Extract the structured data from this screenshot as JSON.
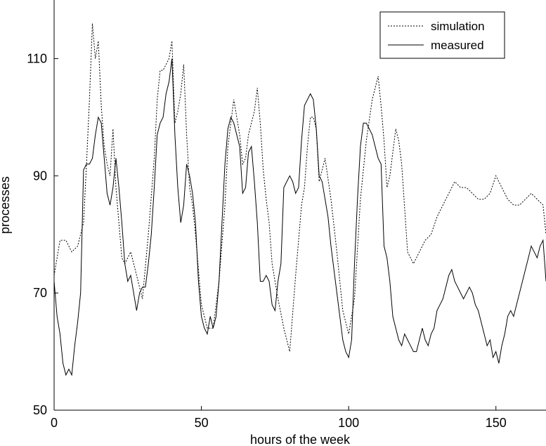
{
  "chart_data": {
    "type": "line",
    "title": "",
    "xlabel": "hours of the week",
    "ylabel": "processes",
    "xlim": [
      0,
      167
    ],
    "ylim": [
      50,
      120
    ],
    "xticks": [
      0,
      50,
      100,
      150
    ],
    "yticks": [
      50,
      70,
      90,
      110
    ],
    "grid": false,
    "legend_position": "top-right",
    "series": [
      {
        "name": "simulation",
        "style": "dotted",
        "color": "#000000",
        "x": [
          0,
          2,
          4,
          6,
          8,
          10,
          11,
          12,
          13,
          14,
          15,
          16,
          17,
          18,
          19,
          20,
          21,
          22,
          23,
          24,
          26,
          28,
          30,
          32,
          34,
          35,
          36,
          37,
          38,
          39,
          40,
          41,
          42,
          43,
          44,
          45,
          46,
          47,
          48,
          50,
          52,
          54,
          56,
          58,
          59,
          60,
          61,
          62,
          63,
          64,
          65,
          66,
          67,
          68,
          69,
          70,
          71,
          72,
          73,
          74,
          76,
          78,
          80,
          82,
          84,
          85,
          86,
          87,
          88,
          89,
          90,
          92,
          94,
          96,
          98,
          100,
          102,
          104,
          106,
          108,
          110,
          111,
          112,
          113,
          114,
          115,
          116,
          117,
          118,
          120,
          122,
          124,
          126,
          128,
          130,
          132,
          134,
          136,
          138,
          140,
          142,
          144,
          146,
          148,
          150,
          152,
          154,
          156,
          158,
          160,
          162,
          164,
          166,
          167
        ],
        "y": [
          73,
          79,
          79,
          77,
          78,
          82,
          92,
          103,
          116,
          110,
          113,
          102,
          95,
          92,
          90,
          98,
          88,
          82,
          76,
          75,
          77,
          73,
          69,
          80,
          93,
          103,
          108,
          108,
          109,
          110,
          113,
          99,
          101,
          104,
          109,
          97,
          88,
          85,
          80,
          68,
          64,
          64,
          72,
          85,
          95,
          99,
          103,
          100,
          97,
          92,
          93,
          97,
          99,
          101,
          105,
          99,
          91,
          86,
          82,
          75,
          69,
          64,
          60,
          73,
          85,
          88,
          95,
          100,
          100,
          98,
          89,
          93,
          86,
          77,
          67,
          63,
          69,
          86,
          96,
          103,
          107,
          102,
          96,
          88,
          90,
          94,
          98,
          96,
          92,
          77,
          75,
          77,
          79,
          80,
          83,
          85,
          87,
          89,
          88,
          88,
          87,
          86,
          86,
          87,
          90,
          88,
          86,
          85,
          85,
          86,
          87,
          86,
          85,
          80
        ]
      },
      {
        "name": "measured",
        "style": "solid",
        "color": "#000000",
        "x": [
          0,
          1,
          2,
          3,
          4,
          5,
          6,
          7,
          8,
          9,
          10,
          11,
          12,
          13,
          14,
          15,
          16,
          17,
          18,
          19,
          20,
          21,
          22,
          23,
          24,
          25,
          26,
          27,
          28,
          29,
          30,
          31,
          32,
          33,
          34,
          35,
          36,
          37,
          38,
          39,
          40,
          41,
          42,
          43,
          44,
          45,
          46,
          47,
          48,
          49,
          50,
          51,
          52,
          53,
          54,
          55,
          56,
          57,
          58,
          59,
          60,
          61,
          62,
          63,
          64,
          65,
          66,
          67,
          68,
          69,
          70,
          71,
          72,
          73,
          74,
          75,
          76,
          77,
          78,
          79,
          80,
          81,
          82,
          83,
          84,
          85,
          86,
          87,
          88,
          89,
          90,
          91,
          92,
          93,
          94,
          95,
          96,
          97,
          98,
          99,
          100,
          101,
          102,
          103,
          104,
          105,
          106,
          107,
          108,
          109,
          110,
          111,
          112,
          113,
          114,
          115,
          116,
          117,
          118,
          119,
          120,
          121,
          122,
          123,
          124,
          125,
          126,
          127,
          128,
          129,
          130,
          131,
          132,
          133,
          134,
          135,
          136,
          137,
          138,
          139,
          140,
          141,
          142,
          143,
          144,
          145,
          146,
          147,
          148,
          149,
          150,
          151,
          152,
          153,
          154,
          155,
          156,
          157,
          158,
          159,
          160,
          161,
          162,
          163,
          164,
          165,
          166,
          167
        ],
        "y": [
          72,
          66,
          63,
          58,
          56,
          57,
          56,
          61,
          65,
          70,
          91,
          92,
          92,
          93,
          97,
          100,
          99,
          93,
          87,
          85,
          88,
          93,
          88,
          82,
          75,
          72,
          73,
          70,
          67,
          70,
          71,
          71,
          75,
          80,
          88,
          97,
          99,
          100,
          104,
          106,
          110,
          97,
          88,
          82,
          85,
          92,
          90,
          87,
          82,
          72,
          66,
          64,
          63,
          66,
          64,
          66,
          72,
          82,
          92,
          98,
          100,
          99,
          97,
          95,
          87,
          88,
          94,
          95,
          89,
          82,
          72,
          72,
          73,
          72,
          68,
          67,
          72,
          75,
          88,
          89,
          90,
          89,
          87,
          88,
          96,
          102,
          103,
          104,
          103,
          98,
          90,
          89,
          86,
          83,
          78,
          74,
          70,
          66,
          62,
          60,
          59,
          62,
          75,
          86,
          95,
          99,
          99,
          98,
          97,
          95,
          93,
          92,
          78,
          76,
          72,
          66,
          64,
          62,
          61,
          63,
          62,
          61,
          60,
          60,
          62,
          64,
          62,
          61,
          63,
          64,
          67,
          68,
          69,
          71,
          73,
          74,
          72,
          71,
          70,
          69,
          70,
          71,
          70,
          68,
          67,
          65,
          63,
          61,
          62,
          59,
          60,
          58,
          61,
          63,
          66,
          67,
          66,
          68,
          70,
          72,
          74,
          76,
          78,
          77,
          76,
          78,
          79,
          72
        ]
      }
    ]
  }
}
